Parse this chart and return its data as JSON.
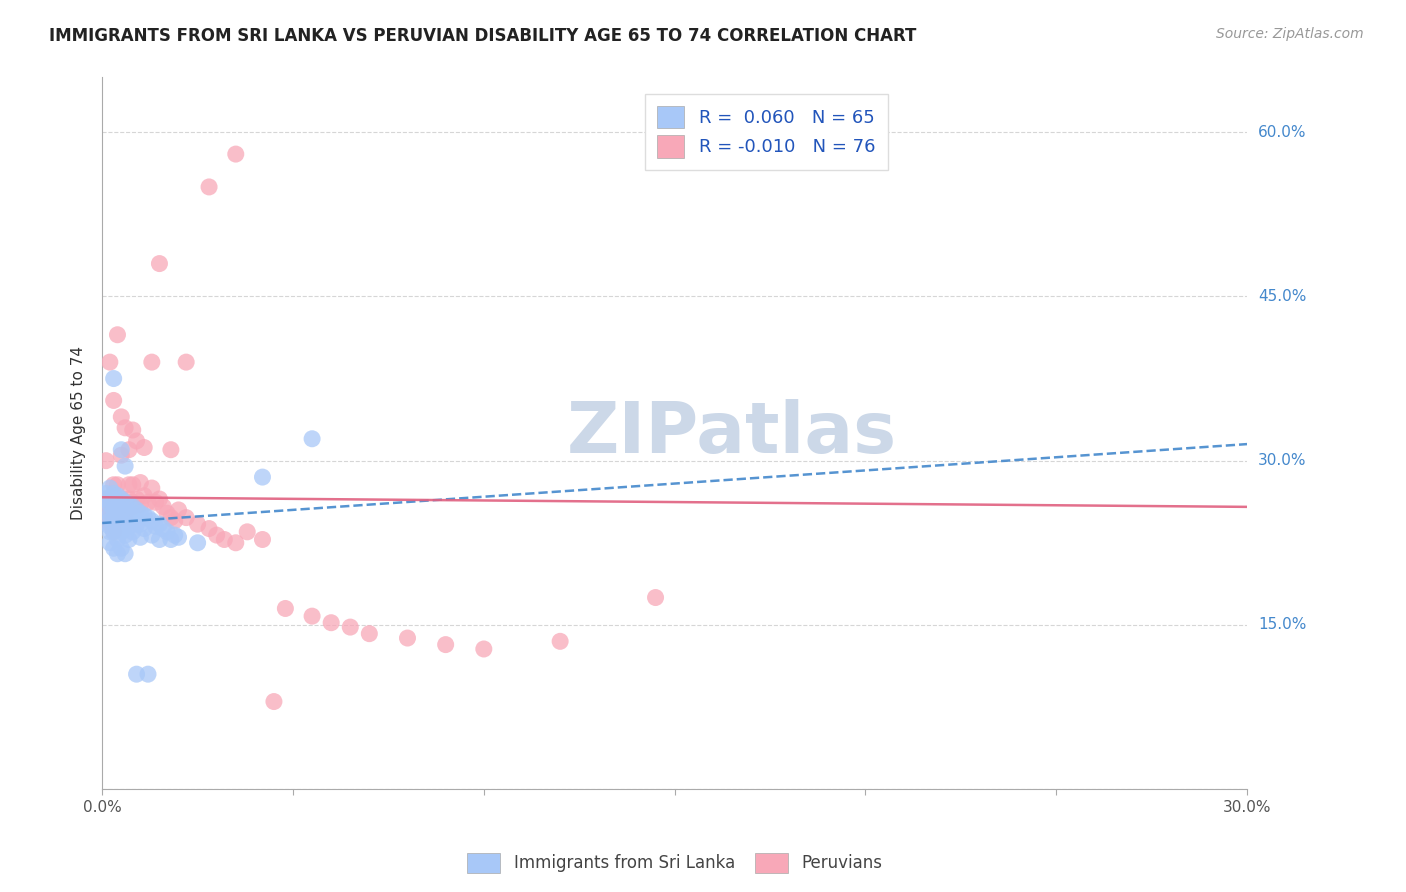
{
  "title": "IMMIGRANTS FROM SRI LANKA VS PERUVIAN DISABILITY AGE 65 TO 74 CORRELATION CHART",
  "source": "Source: ZipAtlas.com",
  "ylabel_label": "Disability Age 65 to 74",
  "x_min": 0.0,
  "x_max": 0.3,
  "y_min": 0.0,
  "y_max": 0.65,
  "x_ticks": [
    0.0,
    0.05,
    0.1,
    0.15,
    0.2,
    0.25,
    0.3
  ],
  "y_ticks": [
    0.0,
    0.15,
    0.3,
    0.45,
    0.6
  ],
  "sri_lanka_color": "#a8c8f8",
  "peruvian_color": "#f8a8b8",
  "sri_lanka_line_color": "#4488cc",
  "peruvian_line_color": "#e06080",
  "background_color": "#ffffff",
  "grid_color": "#cccccc",
  "watermark_color": "#ccd8e8",
  "sri_lanka_R": 0.06,
  "peruvian_R": -0.01,
  "sri_lanka_N": 65,
  "peruvian_N": 76,
  "sri_lanka_x": [
    0.001,
    0.001,
    0.001,
    0.002,
    0.002,
    0.002,
    0.002,
    0.002,
    0.002,
    0.002,
    0.003,
    0.003,
    0.003,
    0.003,
    0.003,
    0.003,
    0.004,
    0.004,
    0.004,
    0.004,
    0.004,
    0.004,
    0.005,
    0.005,
    0.005,
    0.005,
    0.005,
    0.006,
    0.006,
    0.006,
    0.006,
    0.006,
    0.007,
    0.007,
    0.007,
    0.007,
    0.008,
    0.008,
    0.008,
    0.009,
    0.009,
    0.01,
    0.01,
    0.01,
    0.011,
    0.011,
    0.012,
    0.013,
    0.013,
    0.014,
    0.015,
    0.015,
    0.016,
    0.017,
    0.018,
    0.019,
    0.02,
    0.025,
    0.042,
    0.055,
    0.003,
    0.005,
    0.006,
    0.009,
    0.012
  ],
  "sri_lanka_y": [
    0.27,
    0.265,
    0.255,
    0.275,
    0.26,
    0.25,
    0.24,
    0.245,
    0.235,
    0.225,
    0.27,
    0.265,
    0.255,
    0.245,
    0.235,
    0.22,
    0.268,
    0.258,
    0.248,
    0.238,
    0.228,
    0.215,
    0.265,
    0.255,
    0.245,
    0.235,
    0.22,
    0.262,
    0.252,
    0.242,
    0.232,
    0.215,
    0.26,
    0.25,
    0.24,
    0.228,
    0.258,
    0.248,
    0.235,
    0.255,
    0.242,
    0.252,
    0.242,
    0.23,
    0.25,
    0.238,
    0.248,
    0.245,
    0.232,
    0.24,
    0.242,
    0.228,
    0.238,
    0.235,
    0.228,
    0.232,
    0.23,
    0.225,
    0.285,
    0.32,
    0.375,
    0.31,
    0.295,
    0.105,
    0.105
  ],
  "peruvian_x": [
    0.001,
    0.001,
    0.002,
    0.002,
    0.002,
    0.002,
    0.002,
    0.003,
    0.003,
    0.003,
    0.003,
    0.003,
    0.003,
    0.004,
    0.004,
    0.004,
    0.004,
    0.005,
    0.005,
    0.005,
    0.005,
    0.006,
    0.006,
    0.006,
    0.007,
    0.007,
    0.008,
    0.008,
    0.008,
    0.009,
    0.01,
    0.01,
    0.011,
    0.012,
    0.013,
    0.014,
    0.015,
    0.016,
    0.017,
    0.018,
    0.019,
    0.02,
    0.022,
    0.025,
    0.028,
    0.03,
    0.032,
    0.035,
    0.038,
    0.042,
    0.048,
    0.055,
    0.06,
    0.065,
    0.07,
    0.08,
    0.09,
    0.1,
    0.12,
    0.145,
    0.002,
    0.003,
    0.004,
    0.005,
    0.006,
    0.007,
    0.008,
    0.009,
    0.011,
    0.013,
    0.015,
    0.018,
    0.022,
    0.028,
    0.035,
    0.045
  ],
  "peruvian_y": [
    0.265,
    0.3,
    0.265,
    0.255,
    0.248,
    0.242,
    0.255,
    0.265,
    0.258,
    0.248,
    0.242,
    0.235,
    0.278,
    0.262,
    0.255,
    0.248,
    0.278,
    0.265,
    0.26,
    0.255,
    0.305,
    0.26,
    0.255,
    0.25,
    0.278,
    0.265,
    0.262,
    0.278,
    0.258,
    0.265,
    0.26,
    0.28,
    0.268,
    0.262,
    0.275,
    0.262,
    0.265,
    0.258,
    0.252,
    0.248,
    0.245,
    0.255,
    0.248,
    0.242,
    0.238,
    0.232,
    0.228,
    0.225,
    0.235,
    0.228,
    0.165,
    0.158,
    0.152,
    0.148,
    0.142,
    0.138,
    0.132,
    0.128,
    0.135,
    0.175,
    0.39,
    0.355,
    0.415,
    0.34,
    0.33,
    0.31,
    0.328,
    0.318,
    0.312,
    0.39,
    0.48,
    0.31,
    0.39,
    0.55,
    0.58,
    0.08
  ]
}
